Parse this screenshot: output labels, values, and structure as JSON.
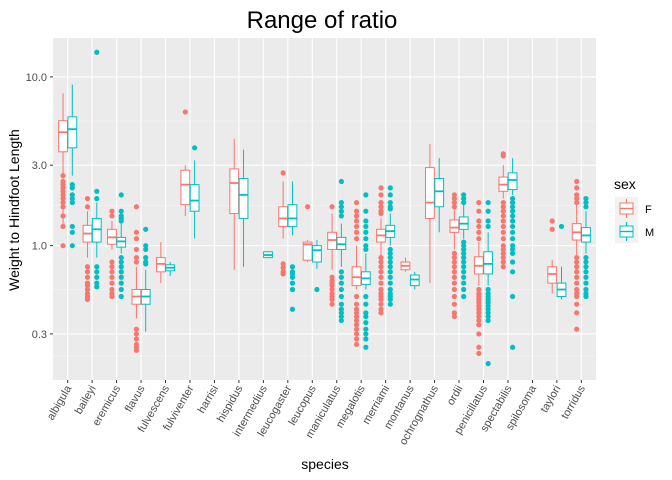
{
  "chart_data": {
    "type": "boxplot",
    "title": "Range of ratio",
    "xlabel": "species",
    "ylabel": "Weight to Hindfoot Length",
    "yscale": "log10",
    "ylim": [
      0.16,
      17
    ],
    "yticks": [
      0.3,
      1.0,
      3.0,
      10.0
    ],
    "ytick_labels": [
      "0.3",
      "1.0",
      "3.0",
      "10.0"
    ],
    "grid": true,
    "legend": {
      "title": "sex",
      "position": "right",
      "entries": [
        "F",
        "M"
      ]
    },
    "categories": [
      "albigula",
      "baileyi",
      "eremicus",
      "flavus",
      "fulvescens",
      "fulviventer",
      "harrisi",
      "hispidus",
      "intermedius",
      "leucogaster",
      "leucopus",
      "maniculatus",
      "megalotis",
      "merriami",
      "montanus",
      "ochrognathus",
      "ordii",
      "penicillatus",
      "spectabilis",
      "spilosoma",
      "taylori",
      "torridus"
    ],
    "series": [
      {
        "name": "F",
        "color": "#F8766D",
        "boxes": [
          {
            "species": "albigula",
            "min": 1.3,
            "q1": 3.6,
            "median": 4.7,
            "q3": 5.5,
            "max": 8.0,
            "outliers": [
              2.6,
              2.4,
              2.3,
              2.2,
              2.1,
              2.0,
              1.9,
              1.8,
              1.7,
              1.5,
              1.3,
              1.0
            ]
          },
          {
            "species": "baileyi",
            "min": 0.85,
            "q1": 1.05,
            "median": 1.18,
            "q3": 1.32,
            "max": 1.6,
            "outliers": [
              1.9,
              1.7,
              0.75,
              0.7,
              0.65,
              0.6,
              0.58,
              0.55,
              0.52,
              0.5,
              0.48
            ]
          },
          {
            "species": "eremicus",
            "min": 0.95,
            "q1": 1.02,
            "median": 1.12,
            "q3": 1.25,
            "max": 1.4,
            "outliers": [
              1.6,
              1.5,
              0.8,
              0.75,
              0.7,
              0.65,
              0.6,
              0.55,
              0.52,
              0.5
            ]
          },
          {
            "species": "flavus",
            "min": 0.37,
            "q1": 0.45,
            "median": 0.5,
            "q3": 0.55,
            "max": 0.75,
            "outliers": [
              1.7,
              1.2,
              1.1,
              0.95,
              0.85,
              0.8,
              0.32,
              0.3,
              0.28,
              0.26,
              0.25,
              0.24
            ]
          },
          {
            "species": "fulvescens",
            "min": 0.6,
            "q1": 0.7,
            "median": 0.78,
            "q3": 0.85,
            "max": 1.05,
            "outliers": []
          },
          {
            "species": "fulviventer",
            "min": 1.5,
            "q1": 1.75,
            "median": 2.3,
            "q3": 2.8,
            "max": 3.0,
            "outliers": [
              6.2
            ]
          },
          {
            "species": "hispidus",
            "min": 0.72,
            "q1": 1.55,
            "median": 2.35,
            "q3": 2.85,
            "max": 4.3,
            "outliers": []
          },
          {
            "species": "leucogaster",
            "min": 1.1,
            "q1": 1.3,
            "median": 1.45,
            "q3": 1.7,
            "max": 2.4,
            "outliers": [
              2.7,
              0.78,
              0.74,
              0.7,
              0.68
            ]
          },
          {
            "species": "leucopus",
            "min": 0.8,
            "q1": 0.82,
            "median": 1.02,
            "q3": 1.05,
            "max": 1.08,
            "outliers": [
              1.7
            ]
          },
          {
            "species": "maniculatus",
            "min": 0.72,
            "q1": 0.95,
            "median": 1.08,
            "q3": 1.2,
            "max": 1.55,
            "outliers": [
              1.7,
              0.65,
              0.62,
              0.6,
              0.58,
              0.55,
              0.52,
              0.5,
              0.48,
              0.45
            ]
          },
          {
            "species": "megalotis",
            "min": 0.55,
            "q1": 0.58,
            "median": 0.65,
            "q3": 0.75,
            "max": 1.0,
            "outliers": [
              1.8,
              1.6,
              1.5,
              1.4,
              1.3,
              1.2,
              1.1,
              0.5,
              0.45,
              0.42,
              0.4,
              0.38,
              0.36,
              0.34,
              0.32,
              0.3,
              0.28,
              0.26
            ]
          },
          {
            "species": "merriami",
            "min": 0.88,
            "q1": 1.05,
            "median": 1.15,
            "q3": 1.25,
            "max": 1.45,
            "outliers": [
              2.2,
              2.0,
              1.8,
              1.7,
              1.6,
              1.55,
              0.85,
              0.8,
              0.75,
              0.7,
              0.65,
              0.6,
              0.55,
              0.52,
              0.5,
              0.48,
              0.45,
              0.42,
              0.4
            ]
          },
          {
            "species": "montanus",
            "min": 0.7,
            "q1": 0.72,
            "median": 0.76,
            "q3": 0.8,
            "max": 0.85,
            "outliers": []
          },
          {
            "species": "ochrognathus",
            "min": 0.6,
            "q1": 1.45,
            "median": 1.8,
            "q3": 2.9,
            "max": 4.0,
            "outliers": []
          },
          {
            "species": "ordii",
            "min": 0.95,
            "q1": 1.2,
            "median": 1.28,
            "q3": 1.42,
            "max": 1.65,
            "outliers": [
              2.0,
              1.9,
              1.8,
              1.7,
              0.9,
              0.85,
              0.8,
              0.75,
              0.7,
              0.65,
              0.6,
              0.55,
              0.5,
              0.45,
              0.4,
              0.38
            ]
          },
          {
            "species": "penicillatus",
            "min": 0.58,
            "q1": 0.68,
            "median": 0.76,
            "q3": 0.86,
            "max": 1.05,
            "outliers": [
              1.8,
              1.6,
              1.4,
              1.3,
              1.2,
              1.1,
              0.55,
              0.52,
              0.5,
              0.48,
              0.46,
              0.44,
              0.42,
              0.4,
              0.38,
              0.36,
              0.34,
              0.3,
              0.25,
              0.23
            ]
          },
          {
            "species": "spectabilis",
            "min": 1.9,
            "q1": 2.1,
            "median": 2.3,
            "q3": 2.55,
            "max": 3.0,
            "outliers": [
              3.5,
              3.4,
              1.8,
              1.7,
              1.6,
              1.5,
              1.4,
              1.3,
              1.2,
              1.1,
              1.0,
              0.95,
              0.9,
              0.85,
              0.8,
              0.75
            ]
          },
          {
            "species": "taylori",
            "min": 0.52,
            "q1": 0.6,
            "median": 0.68,
            "q3": 0.75,
            "max": 0.82,
            "outliers": [
              1.4,
              1.25
            ]
          },
          {
            "species": "torridus",
            "min": 0.88,
            "q1": 1.08,
            "median": 1.2,
            "q3": 1.35,
            "max": 1.75,
            "outliers": [
              2.4,
              2.2,
              2.0,
              1.9,
              1.8,
              0.85,
              0.8,
              0.75,
              0.7,
              0.65,
              0.6,
              0.55,
              0.52,
              0.5,
              0.45,
              0.4,
              0.32
            ]
          }
        ]
      },
      {
        "name": "M",
        "color": "#00BFC4",
        "boxes": [
          {
            "species": "albigula",
            "min": 2.6,
            "q1": 3.8,
            "median": 4.9,
            "q3": 5.8,
            "max": 9.0,
            "outliers": [
              2.3,
              2.2,
              2.0,
              1.9,
              1.8,
              1.3,
              1.2,
              1.0
            ]
          },
          {
            "species": "baileyi",
            "min": 0.85,
            "q1": 1.05,
            "median": 1.25,
            "q3": 1.45,
            "max": 1.8,
            "outliers": [
              14.0,
              2.1,
              1.9,
              0.75,
              0.7,
              0.65,
              0.6,
              0.57
            ]
          },
          {
            "species": "eremicus",
            "min": 0.9,
            "q1": 0.98,
            "median": 1.06,
            "q3": 1.12,
            "max": 1.35,
            "outliers": [
              2.0,
              1.6,
              1.5,
              1.45,
              1.4,
              0.85,
              0.8,
              0.75,
              0.7,
              0.65,
              0.6,
              0.55,
              0.5
            ]
          },
          {
            "species": "flavus",
            "min": 0.31,
            "q1": 0.45,
            "median": 0.5,
            "q3": 0.55,
            "max": 0.72,
            "outliers": [
              1.25,
              1.0,
              0.95,
              0.85,
              0.8,
              0.78
            ]
          },
          {
            "species": "fulvescens",
            "min": 0.66,
            "q1": 0.71,
            "median": 0.74,
            "q3": 0.77,
            "max": 0.8,
            "outliers": []
          },
          {
            "species": "fulviventer",
            "min": 1.1,
            "q1": 1.6,
            "median": 1.85,
            "q3": 2.3,
            "max": 3.2,
            "outliers": [
              3.8
            ]
          },
          {
            "species": "hispidus",
            "min": 0.75,
            "q1": 1.45,
            "median": 2.0,
            "q3": 2.5,
            "max": 3.7,
            "outliers": []
          },
          {
            "species": "intermedius",
            "min": 0.85,
            "q1": 0.85,
            "median": 0.88,
            "q3": 0.92,
            "max": 0.93,
            "outliers": []
          },
          {
            "species": "leucogaster",
            "min": 1.15,
            "q1": 1.3,
            "median": 1.45,
            "q3": 1.75,
            "max": 2.4,
            "outliers": [
              0.75,
              0.7,
              0.68,
              0.65,
              0.6,
              0.55,
              0.42
            ]
          },
          {
            "species": "leucopus",
            "min": 0.73,
            "q1": 0.8,
            "median": 0.94,
            "q3": 1.0,
            "max": 1.08,
            "outliers": [
              0.55
            ]
          },
          {
            "species": "maniculatus",
            "min": 0.75,
            "q1": 0.95,
            "median": 1.02,
            "q3": 1.12,
            "max": 1.35,
            "outliers": [
              2.4,
              1.8,
              1.7,
              1.6,
              1.5,
              0.7,
              0.65,
              0.6,
              0.55,
              0.5,
              0.45,
              0.42,
              0.4,
              0.38,
              0.36
            ]
          },
          {
            "species": "megalotis",
            "min": 0.55,
            "q1": 0.59,
            "median": 0.64,
            "q3": 0.7,
            "max": 0.9,
            "outliers": [
              2.0,
              1.6,
              1.4,
              1.3,
              1.2,
              1.1,
              1.0,
              0.95,
              0.5,
              0.45,
              0.4,
              0.38,
              0.35,
              0.32,
              0.3,
              0.28,
              0.25
            ]
          },
          {
            "species": "merriami",
            "min": 1.0,
            "q1": 1.12,
            "median": 1.22,
            "q3": 1.32,
            "max": 1.55,
            "outliers": [
              2.2,
              2.0,
              1.8,
              1.7,
              1.65,
              0.95,
              0.9,
              0.85,
              0.8,
              0.75,
              0.7,
              0.65,
              0.6,
              0.55,
              0.52,
              0.5,
              0.48,
              0.45
            ]
          },
          {
            "species": "montanus",
            "min": 0.55,
            "q1": 0.58,
            "median": 0.63,
            "q3": 0.67,
            "max": 0.7,
            "outliers": []
          },
          {
            "species": "ochrognathus",
            "min": 1.2,
            "q1": 1.7,
            "median": 2.1,
            "q3": 2.5,
            "max": 3.3,
            "outliers": []
          },
          {
            "species": "ordii",
            "min": 1.1,
            "q1": 1.25,
            "median": 1.35,
            "q3": 1.48,
            "max": 1.75,
            "outliers": [
              2.0,
              1.9,
              1.8,
              1.05,
              1.0,
              0.95,
              0.9,
              0.85,
              0.8,
              0.75,
              0.7,
              0.65,
              0.6,
              0.55,
              0.5
            ]
          },
          {
            "species": "penicillatus",
            "min": 0.58,
            "q1": 0.68,
            "median": 0.78,
            "q3": 0.92,
            "max": 1.2,
            "outliers": [
              1.8,
              1.6,
              1.4,
              1.3,
              0.55,
              0.52,
              0.5,
              0.48,
              0.46,
              0.44,
              0.42,
              0.4,
              0.38,
              0.36,
              0.2
            ]
          },
          {
            "species": "spectabilis",
            "min": 2.0,
            "q1": 2.15,
            "median": 2.45,
            "q3": 2.7,
            "max": 3.3,
            "outliers": [
              1.9,
              1.8,
              1.7,
              1.6,
              1.5,
              1.4,
              1.3,
              1.2,
              1.1,
              1.0,
              0.95,
              0.9,
              0.8,
              0.7,
              0.5,
              0.25
            ]
          },
          {
            "species": "taylori",
            "min": 0.48,
            "q1": 0.5,
            "median": 0.55,
            "q3": 0.6,
            "max": 0.75,
            "outliers": [
              1.3
            ]
          },
          {
            "species": "torridus",
            "min": 0.9,
            "q1": 1.05,
            "median": 1.15,
            "q3": 1.28,
            "max": 1.6,
            "outliers": [
              1.9,
              1.8,
              1.7,
              0.85,
              0.8,
              0.75,
              0.7,
              0.65,
              0.6,
              0.55,
              0.52,
              0.5
            ]
          }
        ]
      }
    ]
  }
}
